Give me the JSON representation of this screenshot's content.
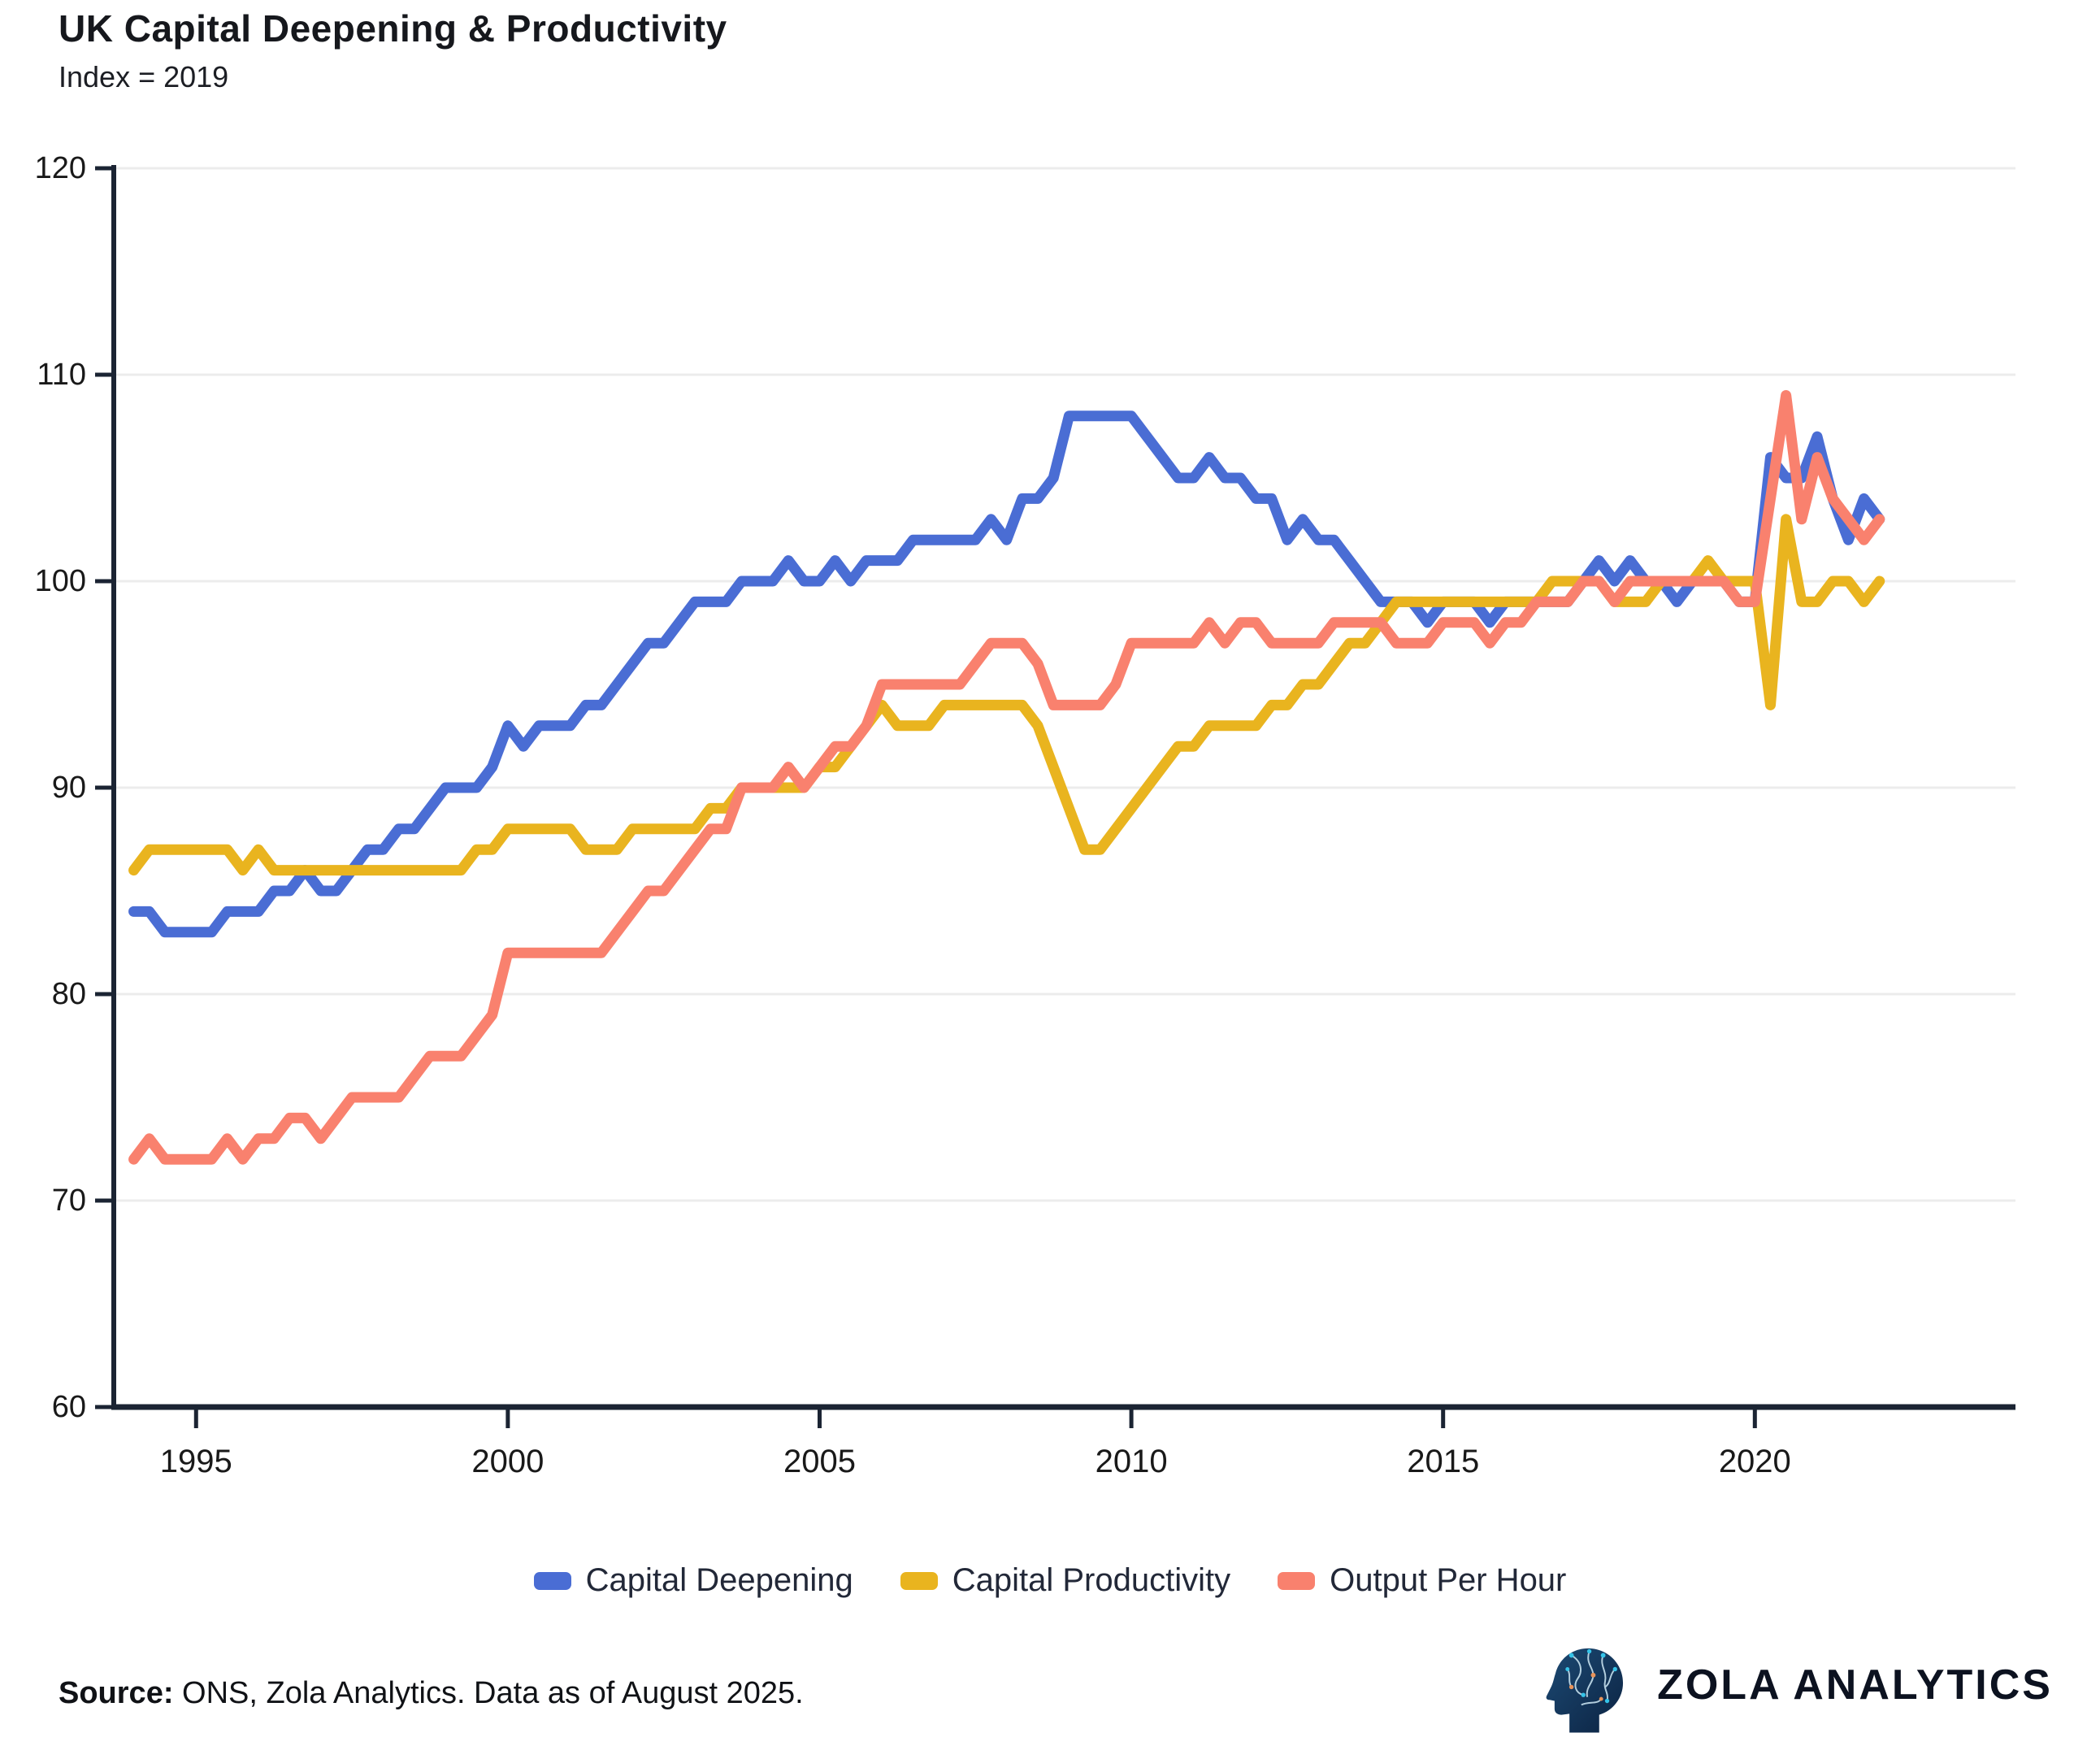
{
  "header": {
    "title": "UK Capital Deepening & Productivity",
    "subtitle": "Index = 2019"
  },
  "footer": {
    "source_label": "Source:",
    "source_text": "ONS, Zola Analytics. Data as of August 2025.",
    "brand_name": "ZOLA  ANALYTICS",
    "brand_icon": "circuit-brain-head-icon"
  },
  "colors": {
    "capital_deepening": "#4a6dd4",
    "capital_productivity": "#e9b41f",
    "output_per_hour": "#f9816e",
    "axis": "#1b2433",
    "grid": "#ececec",
    "tick_text": "#191919"
  },
  "chart_data": {
    "type": "line",
    "title": "UK Capital Deepening & Productivity",
    "subtitle": "Index = 2019",
    "xlabel": "",
    "ylabel": "",
    "grid": "horizontal",
    "legend_position": "bottom",
    "ylim": [
      60,
      120
    ],
    "xlim": [
      1993.68,
      2024.18
    ],
    "y_ticks": [
      60,
      70,
      80,
      90,
      100,
      110,
      120
    ],
    "x_ticks": [
      1995,
      2000,
      2005,
      2010,
      2015,
      2020
    ],
    "x_start_year": 1994,
    "frequency": "quarterly",
    "series": [
      {
        "name": "Capital Deepening",
        "color": "#4a6dd4",
        "values": [
          84,
          84,
          83,
          83,
          83,
          83,
          84,
          84,
          84,
          85,
          85,
          86,
          85,
          85,
          86,
          87,
          87,
          88,
          88,
          89,
          90,
          90,
          90,
          91,
          93,
          92,
          93,
          93,
          93,
          94,
          94,
          95,
          96,
          97,
          97,
          98,
          99,
          99,
          99,
          100,
          100,
          100,
          101,
          100,
          100,
          101,
          100,
          101,
          101,
          101,
          102,
          102,
          102,
          102,
          102,
          103,
          102,
          104,
          104,
          105,
          108,
          108,
          108,
          108,
          108,
          107,
          106,
          105,
          105,
          106,
          105,
          105,
          104,
          104,
          102,
          103,
          102,
          102,
          101,
          100,
          99,
          99,
          99,
          98,
          99,
          99,
          99,
          98,
          99,
          99,
          99,
          99,
          99,
          100,
          101,
          100,
          101,
          100,
          100,
          99,
          100,
          100,
          100,
          99,
          99,
          106,
          105,
          105,
          107,
          104,
          102,
          104,
          103
        ]
      },
      {
        "name": "Capital Productivity",
        "color": "#e9b41f",
        "values": [
          86,
          87,
          87,
          87,
          87,
          87,
          87,
          86,
          87,
          86,
          86,
          86,
          86,
          86,
          86,
          86,
          86,
          86,
          86,
          86,
          86,
          86,
          87,
          87,
          88,
          88,
          88,
          88,
          88,
          87,
          87,
          87,
          88,
          88,
          88,
          88,
          88,
          89,
          89,
          90,
          90,
          90,
          90,
          90,
          91,
          91,
          92,
          93,
          94,
          93,
          93,
          93,
          94,
          94,
          94,
          94,
          94,
          94,
          93,
          91,
          89,
          87,
          87,
          88,
          89,
          90,
          91,
          92,
          92,
          93,
          93,
          93,
          93,
          94,
          94,
          95,
          95,
          96,
          97,
          97,
          98,
          99,
          99,
          99,
          99,
          99,
          99,
          99,
          99,
          99,
          99,
          100,
          100,
          100,
          100,
          99,
          99,
          99,
          100,
          100,
          100,
          101,
          100,
          100,
          100,
          94,
          103,
          99,
          99,
          100,
          100,
          99,
          100
        ]
      },
      {
        "name": "Output Per Hour",
        "color": "#f9816e",
        "values": [
          72,
          73,
          72,
          72,
          72,
          72,
          73,
          72,
          73,
          73,
          74,
          74,
          73,
          74,
          75,
          75,
          75,
          75,
          76,
          77,
          77,
          77,
          78,
          79,
          82,
          82,
          82,
          82,
          82,
          82,
          82,
          83,
          84,
          85,
          85,
          86,
          87,
          88,
          88,
          90,
          90,
          90,
          91,
          90,
          91,
          92,
          92,
          93,
          95,
          95,
          95,
          95,
          95,
          95,
          96,
          97,
          97,
          97,
          96,
          94,
          94,
          94,
          94,
          95,
          97,
          97,
          97,
          97,
          97,
          98,
          97,
          98,
          98,
          97,
          97,
          97,
          97,
          98,
          98,
          98,
          98,
          97,
          97,
          97,
          98,
          98,
          98,
          97,
          98,
          98,
          99,
          99,
          99,
          100,
          100,
          99,
          100,
          100,
          100,
          100,
          100,
          100,
          100,
          99,
          99,
          104,
          109,
          103,
          106,
          104,
          103,
          102,
          103
        ]
      }
    ]
  }
}
